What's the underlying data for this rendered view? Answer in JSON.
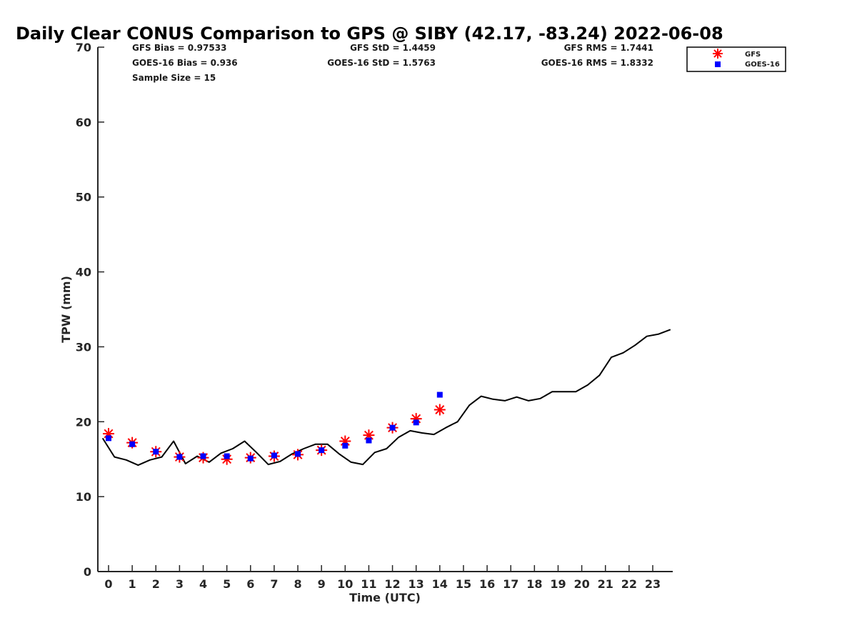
{
  "chart_data": {
    "type": "line",
    "title": "Daily Clear CONUS Comparison to GPS @ SIBY (42.17, -83.24) 2022-06-08",
    "xlabel": "Time (UTC)",
    "ylabel": "TPW (mm)",
    "xlim": [
      -0.5,
      23.8
    ],
    "ylim": [
      0,
      70
    ],
    "x_ticks": [
      0,
      1,
      2,
      3,
      4,
      5,
      6,
      7,
      8,
      9,
      10,
      11,
      12,
      13,
      14,
      15,
      16,
      17,
      18,
      19,
      20,
      21,
      22,
      23
    ],
    "y_ticks": [
      0,
      10,
      20,
      30,
      40,
      50,
      60,
      70
    ],
    "grid": false,
    "legend_position": "top-right",
    "stats": {
      "gfs_bias": "GFS Bias = 0.97533",
      "goes_bias": "GOES-16 Bias = 0.936",
      "sample_size": "Sample Size = 15",
      "gfs_std": "GFS StD = 1.4459",
      "goes_std": "GOES-16 StD = 1.5763",
      "gfs_rms": "GFS RMS = 1.7441",
      "goes_rms": "GOES-16 RMS = 1.8332"
    },
    "series": [
      {
        "name": "",
        "kind": "line",
        "color": "#000000",
        "x": [
          -0.25,
          0.25,
          0.75,
          1.25,
          1.75,
          2.25,
          2.75,
          3.25,
          3.75,
          4.25,
          4.75,
          5.25,
          5.75,
          6.25,
          6.75,
          7.25,
          7.75,
          8.25,
          8.75,
          9.25,
          9.75,
          10.25,
          10.75,
          11.25,
          11.75,
          12.25,
          12.75,
          13.25,
          13.75,
          14.25,
          14.75,
          15.25,
          15.75,
          16.25,
          16.75,
          17.25,
          17.75,
          18.25,
          18.75,
          19.25,
          19.75,
          20.25,
          20.75,
          21.25,
          21.75,
          22.25,
          22.75,
          23.25,
          23.75
        ],
        "y": [
          17.8,
          15.3,
          14.9,
          14.2,
          14.9,
          15.3,
          17.4,
          14.4,
          15.4,
          14.6,
          15.8,
          16.4,
          17.4,
          15.9,
          14.3,
          14.7,
          15.7,
          16.4,
          17.0,
          17.0,
          15.7,
          14.6,
          14.3,
          15.9,
          16.4,
          17.9,
          18.8,
          18.5,
          18.3,
          19.2,
          20.0,
          22.2,
          23.4,
          23.0,
          22.8,
          23.3,
          22.8,
          23.1,
          24.0,
          24.0,
          24.0,
          24.9,
          26.2,
          28.6,
          29.2,
          30.2,
          31.4,
          31.7,
          32.3
        ]
      },
      {
        "name": "GFS",
        "kind": "marker-star",
        "color": "#ff0000",
        "x": [
          0,
          1,
          2,
          3,
          4,
          5,
          6,
          7,
          8,
          9,
          10,
          11,
          12,
          13,
          14
        ],
        "y": [
          18.4,
          17.2,
          16.0,
          15.3,
          15.2,
          15.0,
          15.2,
          15.4,
          15.6,
          16.2,
          17.4,
          18.2,
          19.2,
          20.4,
          21.6
        ]
      },
      {
        "name": "GOES-16",
        "kind": "marker-square",
        "color": "#0000ff",
        "x": [
          0,
          1,
          2,
          3,
          4,
          5,
          6,
          7,
          8,
          9,
          10,
          11,
          12,
          13,
          14
        ],
        "y": [
          17.8,
          17.0,
          16.0,
          15.3,
          15.4,
          15.4,
          15.1,
          15.5,
          15.7,
          16.2,
          16.8,
          17.5,
          19.2,
          19.9,
          23.6
        ]
      }
    ]
  }
}
